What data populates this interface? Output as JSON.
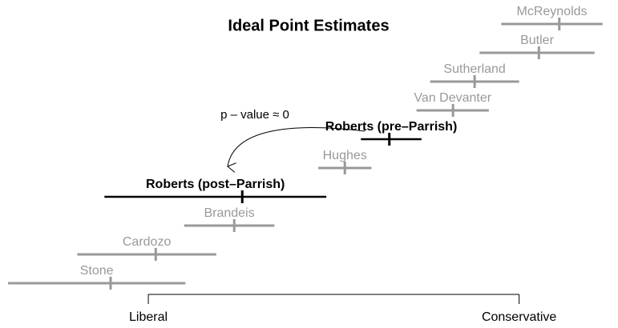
{
  "chart_data": {
    "type": "interval",
    "title": "Ideal Point Estimates",
    "annotation": "p – value ≈ 0",
    "xlim": [
      0,
      100
    ],
    "xticks": [
      {
        "value": 24.0,
        "label": "Liberal"
      },
      {
        "value": 84.0,
        "label": "Conservative"
      }
    ],
    "estimates": [
      {
        "name": "McReynolds",
        "value": 90.5,
        "lower": 81.1,
        "upper": 97.5,
        "color": "#999999"
      },
      {
        "name": "Butler",
        "value": 87.2,
        "lower": 77.6,
        "upper": 96.2,
        "color": "#999999"
      },
      {
        "name": "Sutherland",
        "value": 76.8,
        "lower": 69.6,
        "upper": 84.0,
        "color": "#999999"
      },
      {
        "name": "Van Devanter",
        "value": 73.3,
        "lower": 67.4,
        "upper": 79.1,
        "color": "#999999"
      },
      {
        "name": "Roberts (pre–Parrish)",
        "value": 63.0,
        "lower": 58.4,
        "upper": 68.2,
        "color": "#000000"
      },
      {
        "name": "Hughes",
        "value": 55.8,
        "lower": 51.5,
        "upper": 60.1,
        "color": "#999999"
      },
      {
        "name": "Roberts (post–Parrish)",
        "value": 39.2,
        "lower": 16.9,
        "upper": 52.8,
        "color": "#000000"
      },
      {
        "name": "Brandeis",
        "value": 37.9,
        "lower": 29.8,
        "upper": 44.4,
        "color": "#999999"
      },
      {
        "name": "Cardozo",
        "value": 25.2,
        "lower": 12.5,
        "upper": 35.0,
        "color": "#999999"
      },
      {
        "name": "Stone",
        "value": 17.9,
        "lower": 1.3,
        "upper": 30.0,
        "color": "#999999"
      }
    ]
  }
}
